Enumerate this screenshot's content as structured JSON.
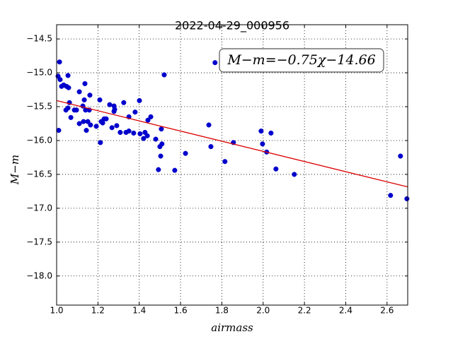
{
  "chart_data": {
    "type": "scatter",
    "title": "2022-04-29_000956",
    "xlabel": "airmass",
    "ylabel": "M−m",
    "annotation": "M−m=−0.75χ−14.66",
    "x": [
      1.007,
      1.014,
      1.017,
      1.01,
      1.024,
      1.034,
      1.048,
      1.055,
      1.058,
      1.045,
      1.055,
      1.062,
      1.069,
      1.086,
      1.096,
      1.11,
      1.11,
      1.127,
      1.137,
      1.134,
      1.13,
      1.14,
      1.144,
      1.151,
      1.158,
      1.161,
      1.164,
      1.192,
      1.209,
      1.212,
      1.216,
      1.23,
      1.223,
      1.24,
      1.257,
      1.268,
      1.278,
      1.278,
      1.281,
      1.291,
      1.308,
      1.325,
      1.336,
      1.35,
      1.35,
      1.373,
      1.38,
      1.401,
      1.404,
      1.421,
      1.428,
      1.439,
      1.442,
      1.456,
      1.48,
      1.493,
      1.5,
      1.504,
      1.507,
      1.51,
      1.521,
      1.572,
      1.624,
      1.737,
      1.747,
      1.767,
      1.815,
      1.856,
      1.99,
      1.997,
      2.017,
      2.038,
      2.062,
      2.151,
      2.617,
      2.665,
      2.696
    ],
    "y": [
      -15.05,
      -14.84,
      -15.1,
      -15.85,
      -15.2,
      -15.18,
      -15.2,
      -15.04,
      -15.22,
      -15.55,
      -15.52,
      -15.44,
      -15.66,
      -15.55,
      -15.55,
      -15.28,
      -15.75,
      -15.49,
      -15.16,
      -15.4,
      -15.72,
      -15.55,
      -15.85,
      -15.72,
      -15.55,
      -15.33,
      -15.77,
      -15.79,
      -15.4,
      -16.03,
      -15.72,
      -15.68,
      -15.74,
      -15.68,
      -15.47,
      -15.81,
      -15.57,
      -15.49,
      -15.54,
      -15.78,
      -15.88,
      -15.44,
      -15.88,
      -15.65,
      -15.86,
      -15.89,
      -15.58,
      -15.41,
      -15.9,
      -15.97,
      -15.88,
      -15.93,
      -15.7,
      -15.65,
      -15.98,
      -16.43,
      -16.09,
      -16.23,
      -15.83,
      -16.05,
      -15.03,
      -16.44,
      -16.19,
      -15.77,
      -16.09,
      -14.85,
      -16.31,
      -16.03,
      -15.86,
      -16.05,
      -16.17,
      -15.89,
      -16.42,
      -16.5,
      -16.81,
      -16.23,
      -16.86
    ],
    "color": "#0000cc",
    "fit": {
      "slope": -0.75,
      "intercept": -14.66,
      "color": "#dd0000"
    },
    "xlim": [
      1.0,
      2.7
    ],
    "ylim": [
      -14.29,
      -18.43
    ],
    "xticks": [
      {
        "value": 1.0,
        "label": "1.0"
      },
      {
        "value": 1.2,
        "label": "1.2"
      },
      {
        "value": 1.4,
        "label": "1.4"
      },
      {
        "value": 1.6,
        "label": "1.6"
      },
      {
        "value": 1.8,
        "label": "1.8"
      },
      {
        "value": 2.0,
        "label": "2.0"
      },
      {
        "value": 2.2,
        "label": "2.2"
      },
      {
        "value": 2.4,
        "label": "2.4"
      },
      {
        "value": 2.6,
        "label": "2.6"
      }
    ],
    "yticks": [
      {
        "value": -14.5,
        "label": "−14.5"
      },
      {
        "value": -15.0,
        "label": "−15.0"
      },
      {
        "value": -15.5,
        "label": "−15.5"
      },
      {
        "value": -16.0,
        "label": "−16.0"
      },
      {
        "value": -16.5,
        "label": "−16.5"
      },
      {
        "value": -17.0,
        "label": "−17.0"
      },
      {
        "value": -17.5,
        "label": "−17.5"
      },
      {
        "value": -18.0,
        "label": "−18.0"
      }
    ],
    "grid": true
  }
}
